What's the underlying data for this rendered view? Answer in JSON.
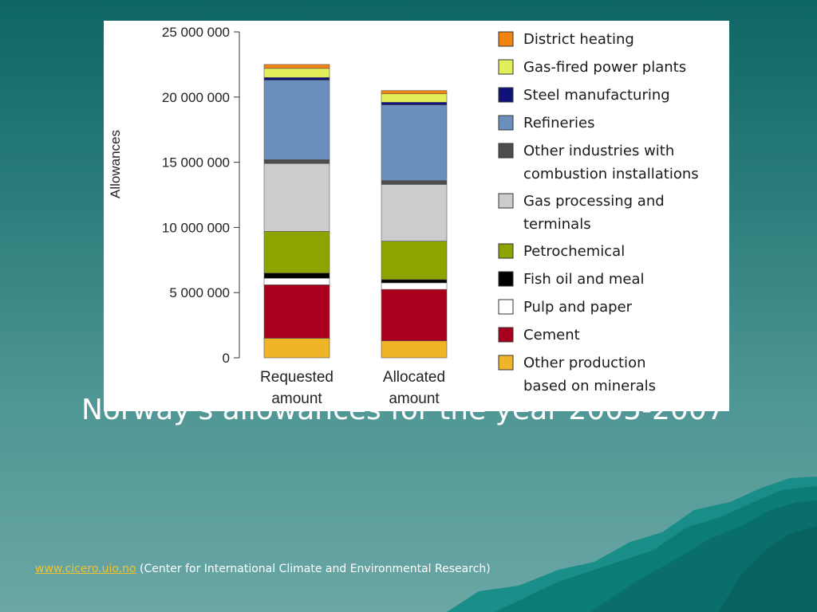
{
  "slide": {
    "title": "Norway's allowances for the year 2005-2007",
    "footer_link": "www.cicero.uio.no",
    "footer_text": " (Center for International Climate and Environmental Research)"
  },
  "colors": {
    "link": "#f0c230",
    "background_top": "#0e6664",
    "background_bottom": "#6aa7a5"
  },
  "chart_data": {
    "type": "bar",
    "stacked": true,
    "categories": [
      [
        "Requested",
        "amount"
      ],
      [
        "Allocated",
        "amount"
      ]
    ],
    "ylabel": "Allowances",
    "ylim": [
      0,
      25000000
    ],
    "yticks": [
      0,
      5000000,
      10000000,
      15000000,
      20000000,
      25000000
    ],
    "ytick_labels": [
      "0",
      "5 000 000",
      "10 000 000",
      "15 000 000",
      "20 000 000",
      "25 000 000"
    ],
    "grid": false,
    "legend_position": "right",
    "series": [
      {
        "name": [
          "Other production",
          "based on minerals"
        ],
        "color": "#f0b428",
        "values": [
          1500000,
          1300000
        ]
      },
      {
        "name": [
          "Cement"
        ],
        "color": "#a8001c",
        "values": [
          4100000,
          3950000
        ]
      },
      {
        "name": [
          "Pulp and paper"
        ],
        "color": "#ffffff",
        "values": [
          500000,
          500000
        ]
      },
      {
        "name": [
          "Fish oil and meal"
        ],
        "color": "#000000",
        "values": [
          400000,
          250000
        ]
      },
      {
        "name": [
          "Petrochemical"
        ],
        "color": "#8ea300",
        "values": [
          3200000,
          2950000
        ]
      },
      {
        "name": [
          "Gas processing and",
          "terminals"
        ],
        "color": "#cccccc",
        "values": [
          5200000,
          4350000
        ]
      },
      {
        "name": [
          "Other industries with",
          "combustion installations"
        ],
        "color": "#4d4d4d",
        "values": [
          300000,
          300000
        ]
      },
      {
        "name": [
          "Refineries"
        ],
        "color": "#6b8fbc",
        "values": [
          6100000,
          5800000
        ]
      },
      {
        "name": [
          "Steel manufacturing"
        ],
        "color": "#11117a",
        "values": [
          200000,
          200000
        ]
      },
      {
        "name": [
          "Gas-fired power plants"
        ],
        "color": "#e2ee5a",
        "values": [
          700000,
          650000
        ]
      },
      {
        "name": [
          "District heating"
        ],
        "color": "#f38411",
        "values": [
          300000,
          250000
        ]
      }
    ]
  }
}
